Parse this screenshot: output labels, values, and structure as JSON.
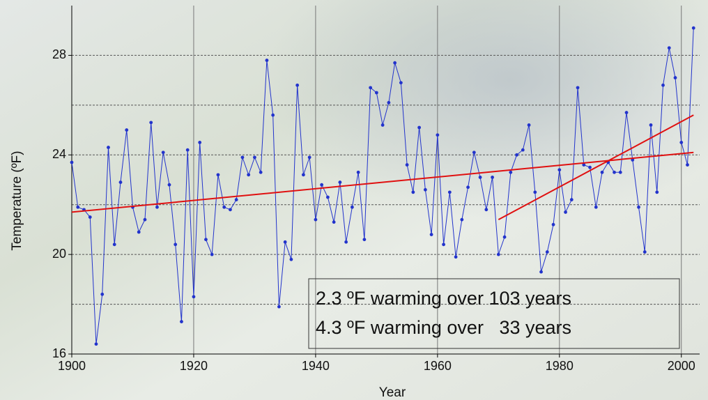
{
  "chart_data": {
    "type": "line",
    "x_label": "Year",
    "y_label": "Temperature (ºF)",
    "xlim": [
      1900,
      2003
    ],
    "ylim": [
      16,
      30
    ],
    "xticks": [
      1900,
      1920,
      1940,
      1960,
      1980,
      2000
    ],
    "yticks": [
      16,
      20,
      24,
      28
    ],
    "y_minor_grid": [
      18,
      22,
      26
    ],
    "grid": true,
    "series": [
      {
        "color": "#2233cc",
        "markers": true,
        "x": [
          1900,
          1901,
          1902,
          1903,
          1904,
          1905,
          1906,
          1907,
          1908,
          1909,
          1910,
          1911,
          1912,
          1913,
          1914,
          1915,
          1916,
          1917,
          1918,
          1919,
          1920,
          1921,
          1922,
          1923,
          1924,
          1925,
          1926,
          1927,
          1928,
          1929,
          1930,
          1931,
          1932,
          1933,
          1934,
          1935,
          1936,
          1937,
          1938,
          1939,
          1940,
          1941,
          1942,
          1943,
          1944,
          1945,
          1946,
          1947,
          1948,
          1949,
          1950,
          1951,
          1952,
          1953,
          1954,
          1955,
          1956,
          1957,
          1958,
          1959,
          1960,
          1961,
          1962,
          1963,
          1964,
          1965,
          1966,
          1967,
          1968,
          1969,
          1970,
          1971,
          1972,
          1973,
          1974,
          1975,
          1976,
          1977,
          1978,
          1979,
          1980,
          1981,
          1982,
          1983,
          1984,
          1985,
          1986,
          1987,
          1988,
          1989,
          1990,
          1991,
          1992,
          1993,
          1994,
          1995,
          1996,
          1997,
          1998,
          1999,
          2000,
          2001,
          2002
        ],
        "values": [
          23.7,
          21.9,
          21.8,
          21.5,
          16.4,
          18.4,
          24.3,
          20.4,
          22.9,
          25.0,
          21.9,
          20.9,
          21.4,
          25.3,
          21.9,
          24.1,
          22.8,
          20.4,
          17.3,
          24.2,
          18.3,
          24.5,
          20.6,
          20.0,
          23.2,
          21.9,
          21.8,
          22.2,
          23.9,
          23.2,
          23.9,
          23.3,
          27.8,
          25.6,
          17.9,
          20.5,
          19.8,
          26.8,
          23.2,
          23.9,
          21.4,
          22.8,
          22.3,
          21.3,
          22.9,
          20.5,
          21.9,
          23.3,
          20.6,
          26.7,
          26.5,
          25.2,
          26.1,
          27.7,
          26.9,
          23.6,
          22.5,
          25.1,
          22.6,
          20.8,
          24.8,
          20.4,
          22.5,
          19.9,
          21.4,
          22.7,
          24.1,
          23.1,
          21.8,
          23.1,
          20.0,
          20.7,
          23.3,
          24.0,
          24.2,
          25.2,
          22.5,
          19.3,
          20.1,
          21.2,
          23.4,
          21.7,
          22.2,
          26.7,
          23.6,
          23.5,
          21.9,
          23.3,
          23.7,
          23.3,
          23.3,
          25.7,
          23.8,
          21.9,
          20.1,
          25.2,
          22.5,
          26.8,
          28.3,
          27.1,
          24.5,
          23.6,
          29.1
        ]
      },
      {
        "color": "#e01010",
        "markers": false,
        "x": [
          1900,
          2002
        ],
        "values": [
          21.7,
          24.1
        ]
      },
      {
        "color": "#e01010",
        "markers": false,
        "x": [
          1970,
          2002
        ],
        "values": [
          21.4,
          25.6
        ]
      }
    ],
    "annotations": [
      "2.3 ºF warming over 103 years",
      "4.3 ºF warming over   33 years"
    ]
  }
}
